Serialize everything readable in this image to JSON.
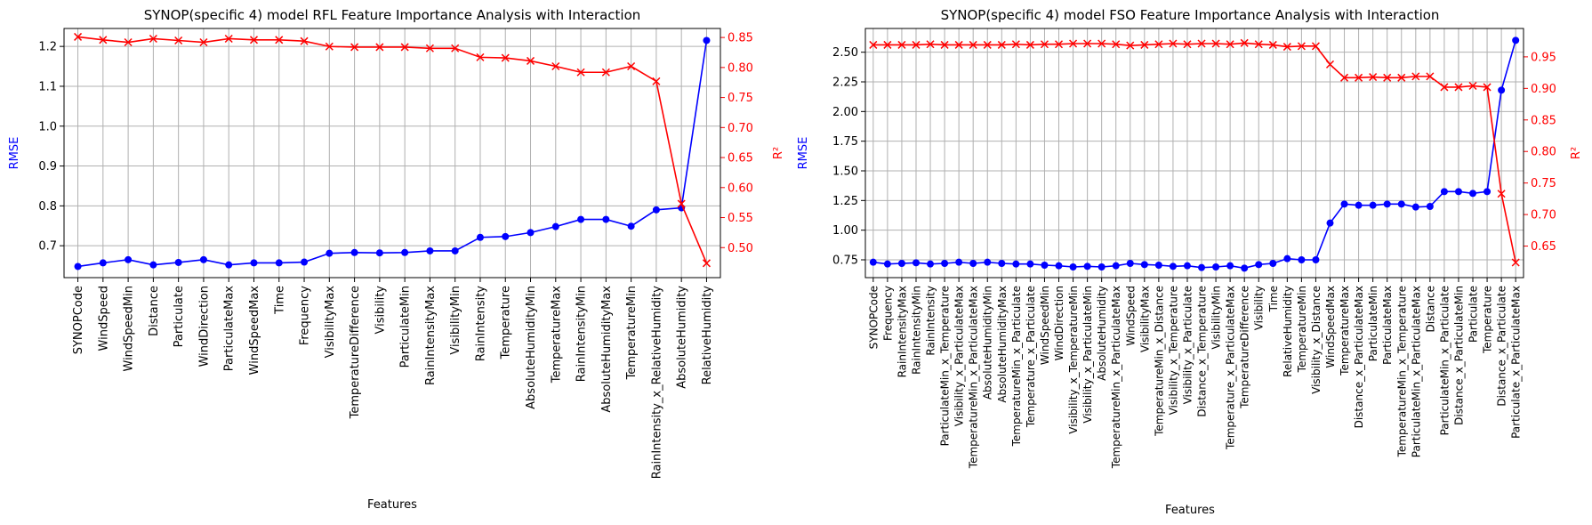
{
  "chart_data": [
    {
      "type": "line",
      "title": "SYNOP(specific 4) model RFL Feature Importance Analysis with Interaction",
      "xlabel": "Features",
      "ylabel_left": "RMSE",
      "ylabel_right": "R²",
      "grid": true,
      "ylim_left": [
        0.62,
        1.245
      ],
      "ylim_right": [
        0.45,
        0.865
      ],
      "yticks_left": [
        "0.7",
        "0.8",
        "0.9",
        "1.0",
        "1.1",
        "1.2"
      ],
      "yticks_right": [
        "0.50",
        "0.55",
        "0.60",
        "0.65",
        "0.70",
        "0.75",
        "0.80",
        "0.85"
      ],
      "categories": [
        "SYNOPCode",
        "WindSpeed",
        "WindSpeedMin",
        "Distance",
        "Particulate",
        "WindDirection",
        "ParticulateMax",
        "WindSpeedMax",
        "Time",
        "Frequency",
        "VisibilityMax",
        "TemperatureDifference",
        "Visibility",
        "ParticulateMin",
        "RainIntensityMax",
        "VisibilityMin",
        "RainIntensity",
        "Temperature",
        "AbsoluteHumidityMin",
        "TemperatureMax",
        "RainIntensityMin",
        "AbsoluteHumidityMax",
        "TemperatureMin",
        "RainIntensity_x_RelativeHumidity",
        "AbsoluteHumidity",
        "RelativeHumidity"
      ],
      "series": [
        {
          "axis": "left",
          "color": "#0000ff",
          "marker": "o",
          "values": [
            0.648,
            0.657,
            0.665,
            0.652,
            0.658,
            0.665,
            0.652,
            0.657,
            0.657,
            0.659,
            0.681,
            0.683,
            0.682,
            0.683,
            0.687,
            0.687,
            0.721,
            0.723,
            0.733,
            0.748,
            0.766,
            0.766,
            0.749,
            0.79,
            0.795,
            1.215
          ]
        },
        {
          "axis": "right",
          "color": "#ff0000",
          "marker": "x",
          "values": [
            0.851,
            0.846,
            0.842,
            0.848,
            0.845,
            0.842,
            0.848,
            0.846,
            0.846,
            0.844,
            0.835,
            0.834,
            0.834,
            0.834,
            0.832,
            0.832,
            0.817,
            0.816,
            0.811,
            0.802,
            0.792,
            0.792,
            0.802,
            0.777,
            0.573,
            0.474
          ]
        }
      ]
    },
    {
      "type": "line",
      "title": "SYNOP(specific 4) model FSO Feature Importance Analysis with Interaction",
      "xlabel": "Features",
      "ylabel_left": "RMSE",
      "ylabel_right": "R²",
      "grid": true,
      "ylim_left": [
        0.6,
        2.7
      ],
      "ylim_right": [
        0.6,
        0.995
      ],
      "yticks_left": [
        "0.75",
        "1.00",
        "1.25",
        "1.50",
        "1.75",
        "2.00",
        "2.25",
        "2.50"
      ],
      "yticks_right": [
        "0.65",
        "0.70",
        "0.75",
        "0.80",
        "0.85",
        "0.90",
        "0.95"
      ],
      "categories": [
        "SYNOPCode",
        "Frequency",
        "RainIntensityMax",
        "RainIntensityMin",
        "RainIntensity",
        "ParticulateMin_x_Temperature",
        "Visibility_x_ParticulateMax",
        "TemperatureMin_x_ParticulateMax",
        "AbsoluteHumidityMin",
        "AbsoluteHumidityMax",
        "TemperatureMin_x_Particulate",
        "Temperature_x_Particulate",
        "WindSpeedMin",
        "WindDirection",
        "Visibility_x_TemperatureMin",
        "Visibility_x_ParticulateMin",
        "AbsoluteHumidity",
        "TemperatureMin_x_ParticulateMax",
        "WindSpeed",
        "VisibilityMax",
        "TemperatureMin_x_Distance",
        "Visibility_x_Temperature",
        "Visibility_x_Particulate",
        "Distance_x_Temperature",
        "VisibilityMin",
        "Temperature_x_ParticulateMax",
        "TemperatureDifference",
        "Visibility",
        "Time",
        "RelativeHumidity",
        "TemperatureMin",
        "Visibility_x_Distance",
        "WindSpeedMax",
        "TemperatureMax",
        "Distance_x_ParticulateMax",
        "ParticulateMin",
        "ParticulateMax",
        "TemperatureMin_x_Temperature",
        "ParticulateMin_x_ParticulateMax",
        "Distance",
        "ParticulateMin_x_Particulate",
        "Distance_x_ParticulateMin",
        "Particulate",
        "Temperature",
        "Distance_x_Particulate",
        "Particulate_x_ParticulateMax"
      ],
      "series": [
        {
          "axis": "left",
          "color": "#0000ff",
          "marker": "o",
          "values": [
            0.73,
            0.715,
            0.72,
            0.725,
            0.715,
            0.72,
            0.73,
            0.72,
            0.73,
            0.72,
            0.715,
            0.715,
            0.705,
            0.7,
            0.69,
            0.695,
            0.69,
            0.7,
            0.72,
            0.71,
            0.705,
            0.695,
            0.7,
            0.685,
            0.69,
            0.7,
            0.68,
            0.71,
            0.72,
            0.76,
            0.75,
            0.75,
            1.06,
            1.22,
            1.21,
            1.21,
            1.22,
            1.22,
            1.195,
            1.2,
            1.325,
            1.325,
            1.31,
            1.325,
            2.18,
            2.6
          ]
        },
        {
          "axis": "right",
          "color": "#ff0000",
          "marker": "x",
          "values": [
            0.969,
            0.969,
            0.969,
            0.969,
            0.97,
            0.969,
            0.969,
            0.969,
            0.969,
            0.969,
            0.97,
            0.969,
            0.97,
            0.97,
            0.971,
            0.971,
            0.971,
            0.97,
            0.968,
            0.969,
            0.97,
            0.971,
            0.97,
            0.971,
            0.971,
            0.97,
            0.972,
            0.97,
            0.969,
            0.966,
            0.967,
            0.967,
            0.938,
            0.917,
            0.917,
            0.918,
            0.917,
            0.917,
            0.919,
            0.919,
            0.902,
            0.902,
            0.904,
            0.902,
            0.733,
            0.624
          ]
        }
      ]
    }
  ]
}
